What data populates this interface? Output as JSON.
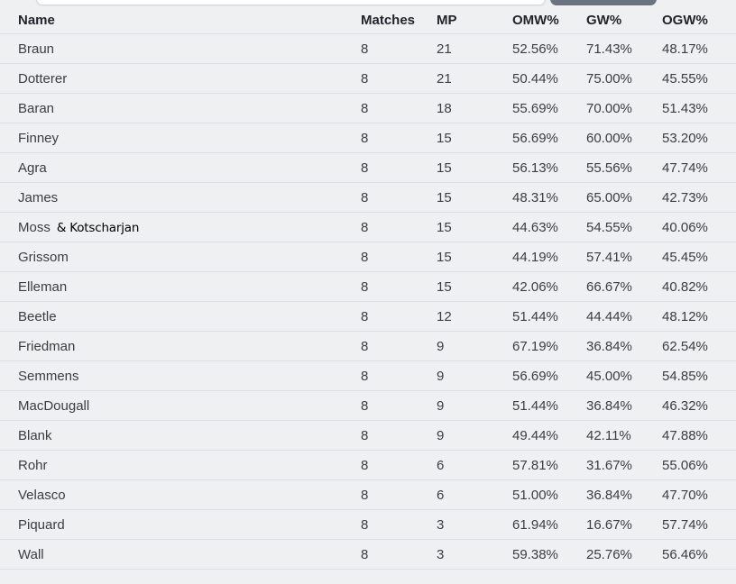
{
  "colors": {
    "page_background": "#eef0f2",
    "row_separator": "#dcdee3",
    "text": "#3a3d42",
    "header_text": "#212429",
    "top_button": "#6b7280",
    "top_input_background": "#ffffff"
  },
  "table": {
    "columns": [
      "Name",
      "Matches",
      "MP",
      "OMW%",
      "GW%",
      "OGW%"
    ],
    "rows": [
      {
        "name": "Braun",
        "matches": "8",
        "mp": "21",
        "omw": "52.56%",
        "gw": "71.43%",
        "ogw": "48.17%"
      },
      {
        "name": "Dotterer",
        "matches": "8",
        "mp": "21",
        "omw": "50.44%",
        "gw": "75.00%",
        "ogw": "45.55%"
      },
      {
        "name": "Baran",
        "matches": "8",
        "mp": "18",
        "omw": "55.69%",
        "gw": "70.00%",
        "ogw": "51.43%"
      },
      {
        "name": "Finney",
        "matches": "8",
        "mp": "15",
        "omw": "56.69%",
        "gw": "60.00%",
        "ogw": "53.20%"
      },
      {
        "name": "Agra",
        "matches": "8",
        "mp": "15",
        "omw": "56.13%",
        "gw": "55.56%",
        "ogw": "47.74%"
      },
      {
        "name": "James",
        "matches": "8",
        "mp": "15",
        "omw": "48.31%",
        "gw": "65.00%",
        "ogw": "42.73%"
      },
      {
        "name": "Moss",
        "name_extra": "& Kotscharjan",
        "matches": "8",
        "mp": "15",
        "omw": "44.63%",
        "gw": "54.55%",
        "ogw": "40.06%"
      },
      {
        "name": "Grissom",
        "matches": "8",
        "mp": "15",
        "omw": "44.19%",
        "gw": "57.41%",
        "ogw": "45.45%"
      },
      {
        "name": "Elleman",
        "matches": "8",
        "mp": "15",
        "omw": "42.06%",
        "gw": "66.67%",
        "ogw": "40.82%"
      },
      {
        "name": "Beetle",
        "matches": "8",
        "mp": "12",
        "omw": "51.44%",
        "gw": "44.44%",
        "ogw": "48.12%"
      },
      {
        "name": "Friedman",
        "matches": "8",
        "mp": "9",
        "omw": "67.19%",
        "gw": "36.84%",
        "ogw": "62.54%"
      },
      {
        "name": "Semmens",
        "matches": "8",
        "mp": "9",
        "omw": "56.69%",
        "gw": "45.00%",
        "ogw": "54.85%"
      },
      {
        "name": "MacDougall",
        "matches": "8",
        "mp": "9",
        "omw": "51.44%",
        "gw": "36.84%",
        "ogw": "46.32%"
      },
      {
        "name": "Blank",
        "matches": "8",
        "mp": "9",
        "omw": "49.44%",
        "gw": "42.11%",
        "ogw": "47.88%"
      },
      {
        "name": "Rohr",
        "matches": "8",
        "mp": "6",
        "omw": "57.81%",
        "gw": "31.67%",
        "ogw": "55.06%"
      },
      {
        "name": "Velasco",
        "matches": "8",
        "mp": "6",
        "omw": "51.00%",
        "gw": "36.84%",
        "ogw": "47.70%"
      },
      {
        "name": "Piquard",
        "matches": "8",
        "mp": "3",
        "omw": "61.94%",
        "gw": "16.67%",
        "ogw": "57.74%"
      },
      {
        "name": "Wall",
        "matches": "8",
        "mp": "3",
        "omw": "59.38%",
        "gw": "25.76%",
        "ogw": "56.46%"
      }
    ]
  }
}
